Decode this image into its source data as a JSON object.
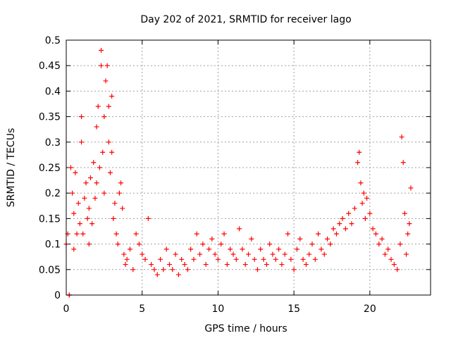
{
  "chart_data": {
    "type": "scatter",
    "title": "Day 202 of 2021, SRMTID for receiver lago",
    "xlabel": "GPS time / hours",
    "ylabel": "SRMTID / TECUs",
    "xlim": [
      0,
      24
    ],
    "ylim": [
      0,
      0.5
    ],
    "xticks": [
      0,
      5,
      10,
      15,
      20
    ],
    "yticks": [
      0,
      0.05,
      0.1,
      0.15,
      0.2,
      0.25,
      0.3,
      0.35,
      0.4,
      0.45,
      0.5
    ],
    "grid": true,
    "marker": "plus",
    "color": "#ff0000",
    "series": [
      {
        "name": "SRMTID",
        "x": [
          0.0,
          0.1,
          0.2,
          0.2,
          0.3,
          0.4,
          0.5,
          0.5,
          0.6,
          0.7,
          0.8,
          0.9,
          1.0,
          1.0,
          1.1,
          1.2,
          1.3,
          1.4,
          1.5,
          1.5,
          1.6,
          1.7,
          1.8,
          1.9,
          2.0,
          2.0,
          2.1,
          2.2,
          2.3,
          2.3,
          2.4,
          2.5,
          2.5,
          2.6,
          2.7,
          2.8,
          2.8,
          2.9,
          3.0,
          3.0,
          3.1,
          3.2,
          3.3,
          3.4,
          3.5,
          3.6,
          3.7,
          3.8,
          3.9,
          4.0,
          4.2,
          4.4,
          4.6,
          4.8,
          5.0,
          5.2,
          5.4,
          5.6,
          5.8,
          6.0,
          6.2,
          6.4,
          6.6,
          6.8,
          7.0,
          7.2,
          7.4,
          7.6,
          7.8,
          8.0,
          8.2,
          8.4,
          8.6,
          8.8,
          9.0,
          9.2,
          9.4,
          9.6,
          9.8,
          10.0,
          10.2,
          10.4,
          10.6,
          10.8,
          11.0,
          11.2,
          11.4,
          11.6,
          11.8,
          12.0,
          12.2,
          12.4,
          12.6,
          12.8,
          13.0,
          13.2,
          13.4,
          13.6,
          13.8,
          14.0,
          14.2,
          14.4,
          14.6,
          14.8,
          15.0,
          15.2,
          15.4,
          15.6,
          15.8,
          16.0,
          16.2,
          16.4,
          16.6,
          16.8,
          17.0,
          17.2,
          17.4,
          17.6,
          17.8,
          18.0,
          18.2,
          18.4,
          18.6,
          18.8,
          19.0,
          19.2,
          19.3,
          19.4,
          19.5,
          19.6,
          19.7,
          19.8,
          20.0,
          20.2,
          20.4,
          20.6,
          20.8,
          21.0,
          21.2,
          21.4,
          21.6,
          21.8,
          22.0,
          22.1,
          22.2,
          22.3,
          22.4,
          22.5,
          22.6,
          22.7
        ],
        "y": [
          0.1,
          0.12,
          0.0,
          0.0,
          0.25,
          0.2,
          0.16,
          0.09,
          0.24,
          0.12,
          0.18,
          0.14,
          0.3,
          0.35,
          0.12,
          0.19,
          0.22,
          0.15,
          0.1,
          0.17,
          0.23,
          0.14,
          0.26,
          0.19,
          0.22,
          0.33,
          0.37,
          0.25,
          0.45,
          0.48,
          0.28,
          0.35,
          0.2,
          0.42,
          0.45,
          0.3,
          0.37,
          0.24,
          0.39,
          0.28,
          0.15,
          0.18,
          0.12,
          0.1,
          0.2,
          0.22,
          0.17,
          0.08,
          0.06,
          0.07,
          0.09,
          0.05,
          0.12,
          0.1,
          0.08,
          0.07,
          0.15,
          0.06,
          0.05,
          0.04,
          0.07,
          0.05,
          0.09,
          0.06,
          0.05,
          0.08,
          0.04,
          0.07,
          0.06,
          0.05,
          0.09,
          0.07,
          0.12,
          0.08,
          0.1,
          0.06,
          0.09,
          0.11,
          0.08,
          0.07,
          0.1,
          0.12,
          0.06,
          0.09,
          0.08,
          0.07,
          0.13,
          0.09,
          0.06,
          0.08,
          0.11,
          0.07,
          0.05,
          0.09,
          0.07,
          0.06,
          0.1,
          0.08,
          0.07,
          0.09,
          0.06,
          0.08,
          0.12,
          0.07,
          0.05,
          0.09,
          0.11,
          0.07,
          0.06,
          0.08,
          0.1,
          0.07,
          0.12,
          0.09,
          0.08,
          0.11,
          0.1,
          0.13,
          0.12,
          0.14,
          0.15,
          0.13,
          0.16,
          0.14,
          0.17,
          0.26,
          0.28,
          0.22,
          0.18,
          0.2,
          0.15,
          0.19,
          0.16,
          0.13,
          0.12,
          0.1,
          0.11,
          0.08,
          0.09,
          0.07,
          0.06,
          0.05,
          0.1,
          0.31,
          0.26,
          0.16,
          0.08,
          0.12,
          0.14,
          0.21
        ]
      }
    ]
  }
}
